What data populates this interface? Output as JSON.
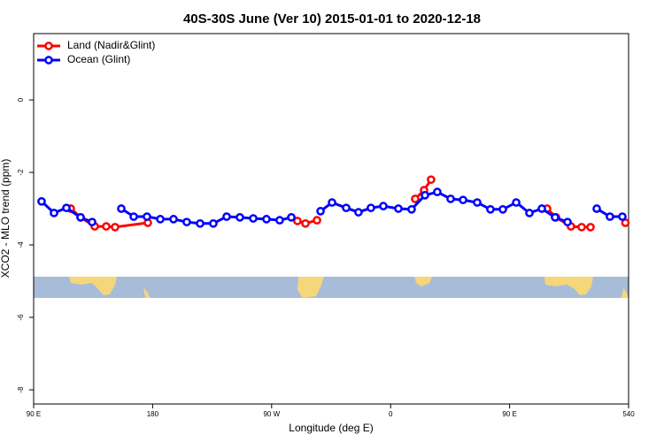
{
  "chart_data": {
    "type": "line",
    "title": "40S-30S June (Ver 10)   2015-01-01 to 2020-12-18",
    "xlabel": "Longitude (deg E)",
    "ylabel": "XCO2 - MLO trend (ppm)",
    "xlim": [
      90,
      540
    ],
    "xticks": [
      {
        "value": 90,
        "label": "90 E"
      },
      180,
      {
        "value": 270,
        "label": "90 W"
      },
      {
        "value": 360,
        "label": "0"
      },
      {
        "value": 450,
        "label": "90 E"
      },
      540
    ],
    "ylim": [
      -8.39,
      1.83
    ],
    "yticks": [
      0,
      -2,
      -4,
      -6,
      -8
    ],
    "legend": "top-left",
    "series": [
      {
        "name": "Land (Nadir&Glint)",
        "color": "#ff0000",
        "x": [
          118.1,
          125.5,
          136.2,
          144.9,
          151.6,
          176.4,
          null,
          289.5,
          295.6,
          304.3,
          null,
          378.6,
          385.3,
          390.6,
          null,
          478.4,
          485.1,
          496.4,
          504.5,
          511.2,
          null,
          537.6
        ],
        "values": [
          -3.0,
          -3.24,
          -3.49,
          -3.49,
          -3.51,
          -3.39,
          null,
          -3.34,
          -3.41,
          -3.32,
          null,
          -2.73,
          -2.49,
          -2.2,
          null,
          -3.0,
          -3.24,
          -3.49,
          -3.51,
          -3.51,
          null,
          -3.39
        ]
      },
      {
        "name": "Ocean (Glint)",
        "color": "#0000ff",
        "x": [
          96.0,
          105.4,
          114.8,
          125.5,
          134.2,
          null,
          156.3,
          165.7,
          175.7,
          185.8,
          195.8,
          205.8,
          215.9,
          225.9,
          236.0,
          246.0,
          256.1,
          266.1,
          276.1,
          284.9,
          null,
          307.0,
          315.7,
          326.4,
          335.7,
          345.1,
          354.5,
          365.9,
          375.9,
          386.0,
          395.3,
          405.4,
          414.8,
          425.5,
          435.5,
          444.9,
          455.0,
          465.0,
          474.4,
          484.4,
          493.8,
          null,
          515.9,
          525.9,
          535.3
        ],
        "values": [
          -2.8,
          -3.12,
          -2.98,
          -3.24,
          -3.37,
          null,
          -3.0,
          -3.22,
          -3.22,
          -3.29,
          -3.29,
          -3.37,
          -3.41,
          -3.41,
          -3.22,
          -3.24,
          -3.27,
          -3.29,
          -3.32,
          -3.24,
          null,
          -3.07,
          -2.83,
          -2.98,
          -3.1,
          -2.98,
          -2.93,
          -3.0,
          -3.02,
          -2.63,
          -2.54,
          -2.73,
          -2.76,
          -2.83,
          -3.02,
          -3.02,
          -2.83,
          -3.12,
          -3.0,
          -3.24,
          -3.37,
          null,
          -3.0,
          -3.22,
          -3.22
        ]
      }
    ]
  }
}
